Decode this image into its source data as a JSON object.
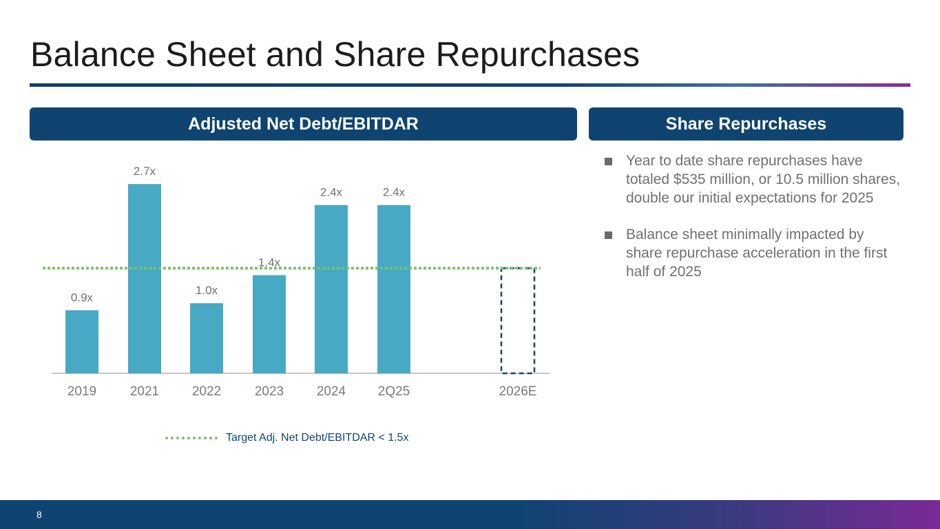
{
  "slide": {
    "title": "Balance Sheet and Share Repurchases",
    "page_number": "8"
  },
  "left_panel": {
    "header": "Adjusted Net Debt/EBITDAR"
  },
  "right_panel": {
    "header": "Share Repurchases",
    "bullets": [
      "Year to date share repurchases have totaled $535 million, or 10.5 million shares, double our initial expectations for 2025",
      "Balance sheet minimally impacted by share repurchase acceleration in the first half of 2025"
    ]
  },
  "legend": {
    "target_label": "Target Adj. Net Debt/EBITDAR < 1.5x"
  },
  "colors": {
    "bar": "#47a9c4",
    "target_line": "#7ac36a",
    "estimate_outline": "#0f4470",
    "header_bg": "#0f4470"
  },
  "chart_data": {
    "type": "bar",
    "title": "Adjusted Net Debt/EBITDAR",
    "categories": [
      "2019",
      "2021",
      "2022",
      "2023",
      "2024",
      "2Q25",
      "2026E"
    ],
    "values": [
      0.9,
      2.7,
      1.0,
      1.4,
      2.4,
      2.4,
      1.5
    ],
    "value_labels": [
      "0.9x",
      "2.7x",
      "1.0x",
      "1.4x",
      "2.4x",
      "2.4x",
      ""
    ],
    "estimate_category": "2026E",
    "target": 1.5,
    "ylim": [
      0,
      2.8
    ],
    "xlabel": "",
    "ylabel": "",
    "grid": false
  }
}
